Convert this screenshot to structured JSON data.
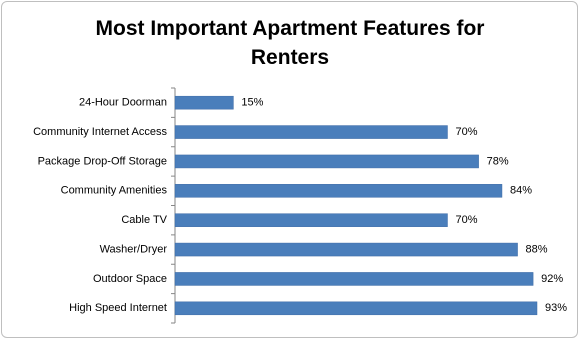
{
  "chart_data": {
    "type": "hbar",
    "title": "Most Important Apartment Features for Renters",
    "categories": [
      "24-Hour Doorman",
      "Community Internet Access",
      "Package Drop-Off Storage",
      "Community Amenities",
      "Cable TV",
      "Washer/Dryer",
      "Outdoor Space",
      "High Speed Internet"
    ],
    "values": [
      15,
      70,
      78,
      84,
      70,
      88,
      92,
      93
    ],
    "value_labels": [
      "15%",
      "70%",
      "78%",
      "84%",
      "70%",
      "88%",
      "92%",
      "93%"
    ],
    "color": "#4a7ebb"
  }
}
